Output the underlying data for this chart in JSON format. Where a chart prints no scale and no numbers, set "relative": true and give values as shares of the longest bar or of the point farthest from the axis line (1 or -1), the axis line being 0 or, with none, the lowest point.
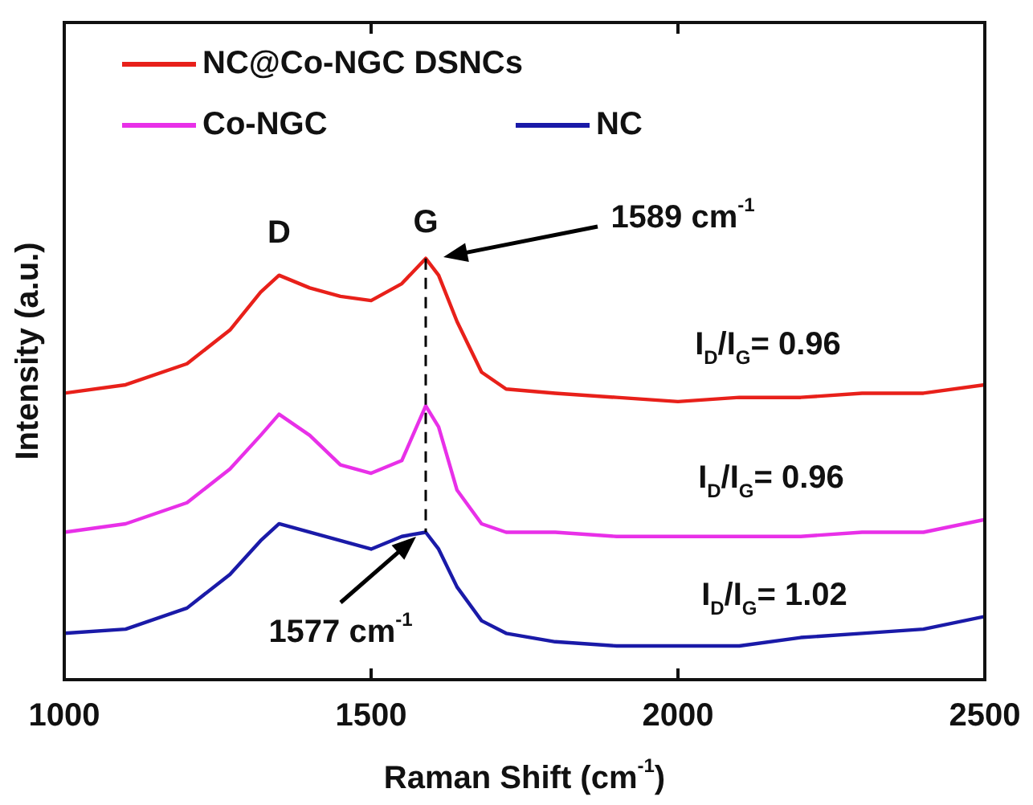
{
  "chart_data": {
    "type": "line",
    "relative": true,
    "xlabel": "Raman Shift (cm$^{-1}$)",
    "ylabel": "Intensity (a.u.)",
    "x": [
      1000,
      1100,
      1200,
      1270,
      1320,
      1350,
      1400,
      1450,
      1500,
      1550,
      1589,
      1610,
      1640,
      1680,
      1720,
      1800,
      1900,
      2000,
      2100,
      2200,
      2300,
      2400,
      2500
    ],
    "xlim": [
      1000,
      2500
    ],
    "xticks": [
      1000,
      1500,
      2000,
      2500
    ],
    "grid": false,
    "legend": "top left",
    "line_style": "solid",
    "marker": "none",
    "series": [
      {
        "name": "NC@Co-NGC DSNCs",
        "color": "#e8201a",
        "values": [
          0.68,
          0.7,
          0.75,
          0.83,
          0.92,
          0.96,
          0.93,
          0.91,
          0.9,
          0.94,
          1.0,
          0.96,
          0.85,
          0.73,
          0.69,
          0.68,
          0.67,
          0.66,
          0.67,
          0.67,
          0.68,
          0.68,
          0.7
        ]
      },
      {
        "name": "Co-NGC",
        "color": "#e830e8",
        "values": [
          0.35,
          0.37,
          0.42,
          0.5,
          0.58,
          0.63,
          0.58,
          0.51,
          0.49,
          0.52,
          0.65,
          0.6,
          0.45,
          0.37,
          0.35,
          0.35,
          0.34,
          0.34,
          0.34,
          0.34,
          0.35,
          0.35,
          0.38
        ]
      },
      {
        "name": "NC",
        "color": "#1a1aa8",
        "values": [
          0.11,
          0.12,
          0.17,
          0.25,
          0.33,
          0.37,
          0.35,
          0.33,
          0.31,
          0.34,
          0.35,
          0.31,
          0.22,
          0.14,
          0.11,
          0.09,
          0.08,
          0.08,
          0.08,
          0.1,
          0.11,
          0.12,
          0.15
        ]
      }
    ],
    "ref_lines": [
      {
        "axis": "x",
        "value": 1589,
        "line_style": "dashed",
        "color": "#000000"
      }
    ],
    "annotations": [
      {
        "text": "D",
        "x": 1350,
        "y": 0.96
      },
      {
        "text": "G",
        "x": 1589,
        "y": 1.0
      },
      "1589 cm$^{-1}$",
      "1577 cm$^{-1}$",
      "I$_{D}$/I$_{G}$= 0.96",
      "I$_{D}$/I$_{G}$= 0.96",
      "I$_{D}$/I$_{G}$= 1.02"
    ]
  }
}
